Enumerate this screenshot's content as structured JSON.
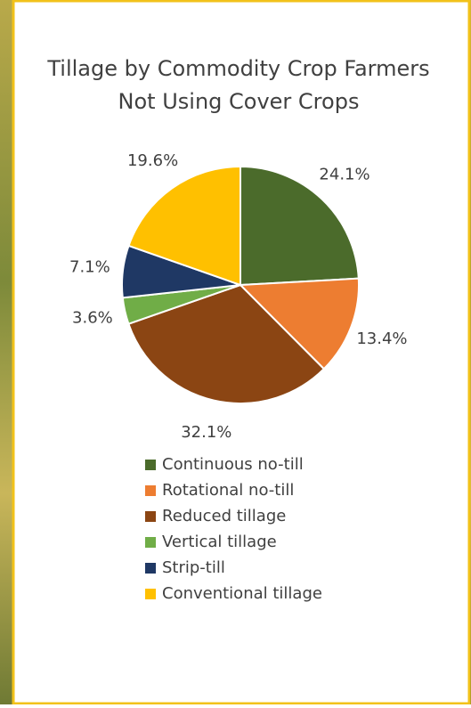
{
  "chart_data": {
    "type": "pie",
    "title": [
      "Tillage by Commodity Crop Farmers",
      "Not Using Cover Crops"
    ],
    "categories": [
      "Continuous no-till",
      "Rotational no-till",
      "Reduced tillage",
      "Vertical tillage",
      "Strip-till",
      "Conventional tillage"
    ],
    "values": [
      24.1,
      13.4,
      32.1,
      3.6,
      7.1,
      19.6
    ],
    "value_labels": [
      "24.1%",
      "13.4%",
      "32.1%",
      "3.6%",
      "7.1%",
      "19.6%"
    ],
    "colors": [
      "#4b6b2b",
      "#ed7d31",
      "#8b4513",
      "#70ad47",
      "#1f3864",
      "#ffc000"
    ],
    "legend": "bottom"
  }
}
